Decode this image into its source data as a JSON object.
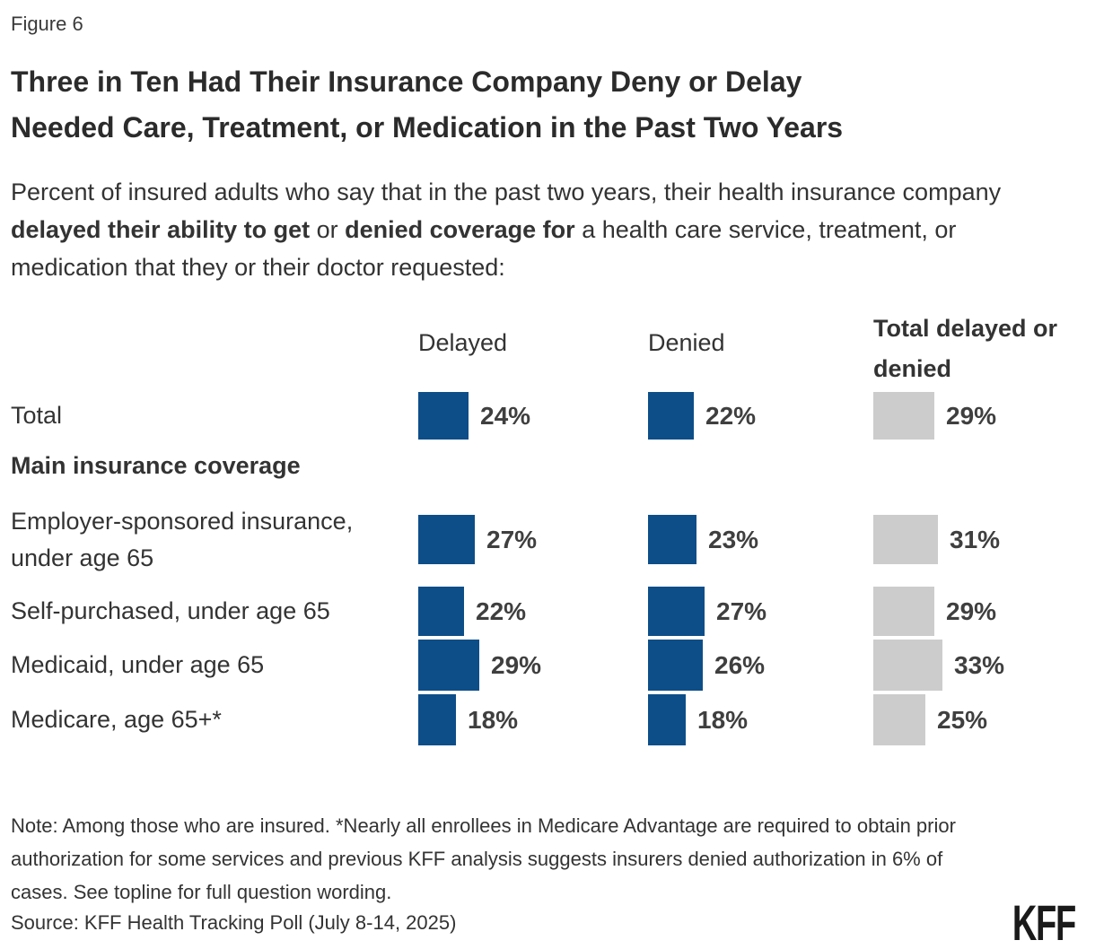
{
  "figure_label": "Figure 6",
  "title_lines": [
    "Three in Ten Had Their Insurance Company Deny or Delay",
    "Needed Care, Treatment, or Medication in the Past Two Years"
  ],
  "subtitle_parts": [
    {
      "text": "Percent of insured adults who say that in the past two years, their health insurance company ",
      "bold": false
    },
    {
      "text": "delayed their ability to get",
      "bold": true
    },
    {
      "text": " or ",
      "bold": false
    },
    {
      "text": "denied coverage for",
      "bold": true
    },
    {
      "text": " a health care service, treatment, or medication that they or their doctor requested:",
      "bold": false
    }
  ],
  "chart_data": {
    "type": "bar",
    "orientation": "horizontal",
    "unit": "%",
    "value_suffix": "%",
    "columns": [
      "Delayed",
      "Denied",
      "Total delayed or denied"
    ],
    "section_header": "Main insurance coverage",
    "rows": [
      {
        "label": "Total",
        "values": [
          24,
          22,
          29
        ]
      },
      {
        "label": "Employer-sponsored insurance, under age 65",
        "values": [
          27,
          23,
          31
        ]
      },
      {
        "label": "Self-purchased, under age 65",
        "values": [
          22,
          27,
          29
        ]
      },
      {
        "label": "Medicaid, under age 65",
        "values": [
          29,
          26,
          33
        ]
      },
      {
        "label": "Medicare, age 65+*",
        "values": [
          18,
          18,
          25
        ]
      }
    ],
    "colors": {
      "bar_blue": "#0D4E89",
      "bar_gray": "#CCCCCC"
    },
    "legend_position": "none",
    "grid": false
  },
  "note": "Note: Among those who are insured. *Nearly all enrollees in Medicare Advantage are required to obtain prior authorization for some services and previous KFF analysis suggests insurers denied authorization in 6% of cases. See topline for full question wording.",
  "source": "Source: KFF Health Tracking Poll (July 8-14, 2025)",
  "logo": "KFF"
}
